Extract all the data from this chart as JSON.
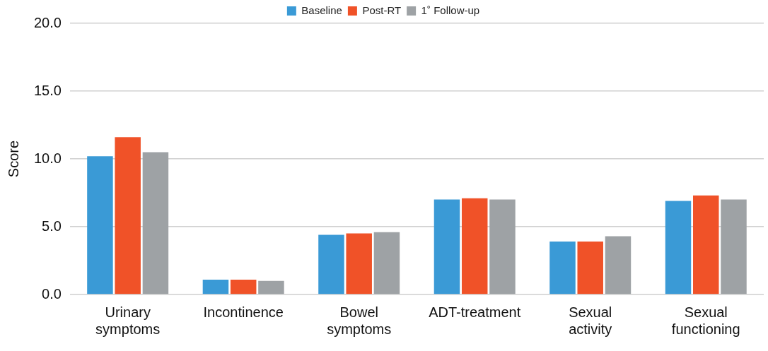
{
  "chart_data": {
    "type": "bar",
    "ylabel": "Score",
    "categories": [
      "Urinary symptoms",
      "Incontinence",
      "Bowel symptoms",
      "ADT-treatment",
      "Sexual activity",
      "Sexual functioning"
    ],
    "series": [
      {
        "name": "Baseline",
        "color": "#3a9ad6",
        "values": [
          10.2,
          1.1,
          4.4,
          7.0,
          3.9,
          6.9
        ]
      },
      {
        "name": "Post-RT",
        "color": "#f05228",
        "values": [
          11.6,
          1.1,
          4.5,
          7.1,
          3.9,
          7.3
        ]
      },
      {
        "name": "1˚ Follow-up",
        "color": "#9ea2a5",
        "values": [
          10.5,
          1.0,
          4.6,
          7.0,
          4.3,
          7.0
        ]
      }
    ],
    "ylim": [
      0,
      20
    ],
    "yticks": [
      {
        "value": 0,
        "label": "0.0"
      },
      {
        "value": 5,
        "label": "5.0"
      },
      {
        "value": 10,
        "label": "10.0"
      },
      {
        "value": 15,
        "label": "15.0"
      },
      {
        "value": 20,
        "label": "20.0"
      }
    ],
    "grid": "y",
    "legend": "top"
  }
}
